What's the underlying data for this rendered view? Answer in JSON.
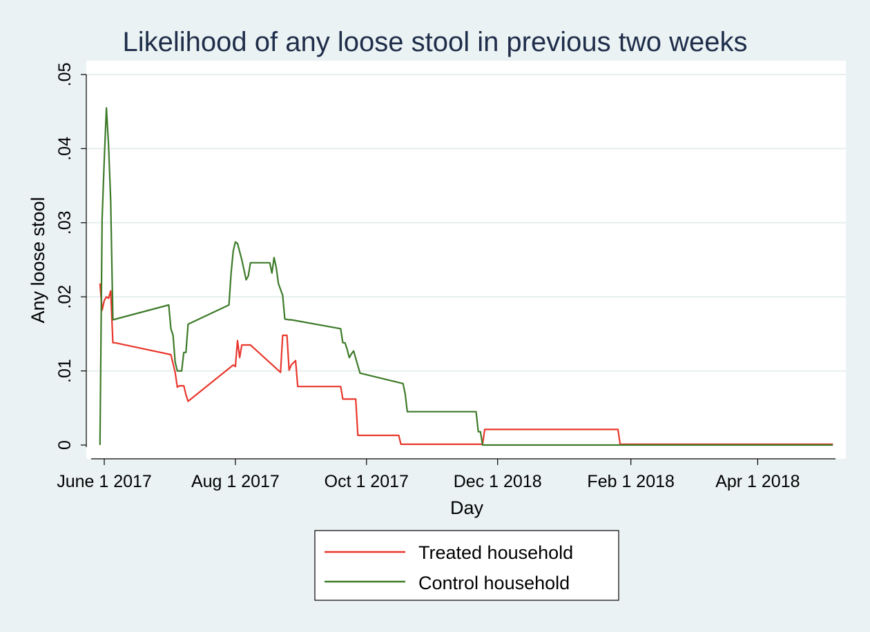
{
  "chart_data": {
    "type": "line",
    "title": "Likelihood of any loose stool in previous two weeks",
    "xlabel": "Day",
    "ylabel": "Any loose stool",
    "x_ticks": [
      {
        "x": 0,
        "label": "June 1 2017"
      },
      {
        "x": 61,
        "label": "Aug 1 2017"
      },
      {
        "x": 122,
        "label": "Oct 1 2017"
      },
      {
        "x": 183,
        "label": "Dec 1 2018"
      },
      {
        "x": 245,
        "label": "Feb 1 2018"
      },
      {
        "x": 304,
        "label": "Apr 1 2018"
      }
    ],
    "y_ticks": [
      {
        "y": 0,
        "label": "0"
      },
      {
        "y": 0.01,
        "label": ".01"
      },
      {
        "y": 0.02,
        "label": ".02"
      },
      {
        "y": 0.03,
        "label": ".03"
      },
      {
        "y": 0.04,
        "label": ".04"
      },
      {
        "y": 0.05,
        "label": ".05"
      }
    ],
    "xlim": [
      -3,
      340
    ],
    "ylim": [
      0,
      0.05
    ],
    "grid": "horizontal",
    "legend_position": "bottom",
    "series": [
      {
        "name": "Treated household",
        "color": "#e8362b",
        "x": [
          -2,
          -1,
          0,
          1,
          2,
          3,
          4,
          5,
          31,
          33,
          34,
          35,
          37,
          38,
          39,
          60,
          61,
          62,
          63,
          64,
          68,
          82,
          83,
          85,
          86,
          87,
          89,
          90,
          110,
          111,
          117,
          118,
          137,
          138,
          140,
          141,
          150,
          151,
          176,
          177,
          200,
          201,
          239,
          240,
          339
        ],
        "y": [
          0.0218,
          0.0182,
          0.0195,
          0.02,
          0.0198,
          0.0208,
          0.0138,
          0.0138,
          0.0122,
          0.0098,
          0.0078,
          0.008,
          0.008,
          0.0068,
          0.0059,
          0.0108,
          0.0106,
          0.0141,
          0.0118,
          0.0135,
          0.0135,
          0.0098,
          0.0148,
          0.0148,
          0.0101,
          0.0108,
          0.0114,
          0.0079,
          0.0079,
          0.0062,
          0.0062,
          0.0013,
          0.0013,
          0.0001,
          0.0001,
          0.0001,
          0.0001,
          0.0001,
          0.0001,
          0.0021,
          0.0021,
          0.0021,
          0.0021,
          0.0001,
          0.0001
        ]
      },
      {
        "name": "Control household",
        "color": "#3c7a28",
        "x": [
          -2,
          -1,
          0,
          1,
          2,
          3,
          4,
          30,
          31,
          32,
          33,
          34,
          35,
          36,
          37,
          38,
          39,
          58,
          59,
          60,
          61,
          62,
          64,
          66,
          67,
          68,
          77,
          78,
          79,
          80,
          81,
          83,
          84,
          86,
          87,
          110,
          111,
          112,
          113,
          114,
          115,
          116,
          119,
          139,
          140,
          141,
          173,
          174,
          175,
          176,
          339
        ],
        "y": [
          0.0,
          0.0305,
          0.0385,
          0.0455,
          0.0405,
          0.033,
          0.0169,
          0.0189,
          0.0157,
          0.0148,
          0.0112,
          0.01,
          0.01,
          0.01,
          0.0125,
          0.0125,
          0.0163,
          0.0189,
          0.0232,
          0.0262,
          0.0274,
          0.0272,
          0.025,
          0.0223,
          0.0228,
          0.0246,
          0.0246,
          0.0232,
          0.0253,
          0.024,
          0.0218,
          0.0202,
          0.017,
          0.0169,
          0.0169,
          0.0157,
          0.0138,
          0.0138,
          0.0129,
          0.0118,
          0.0123,
          0.0127,
          0.0097,
          0.0083,
          0.0069,
          0.0045,
          0.0045,
          0.0018,
          0.0018,
          0.0,
          0.0
        ]
      }
    ]
  }
}
